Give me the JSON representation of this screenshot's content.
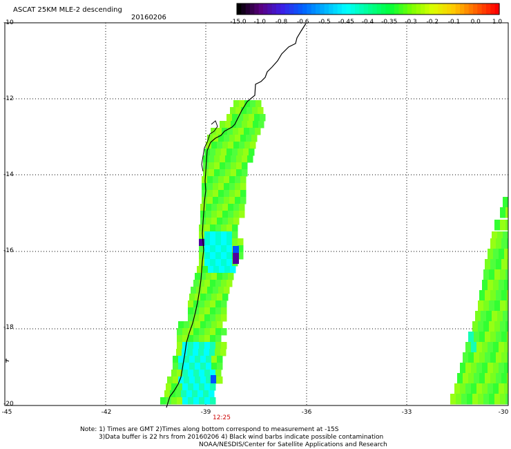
{
  "header": {
    "title": "ASCAT 25KM MLE-2 descending",
    "date": "20160206"
  },
  "colorbar": {
    "ticks": [
      "-15.0",
      "-1.0",
      "-0.8",
      "-0.6",
      "-0.5",
      "-0.45",
      "-0.4",
      "-0.35",
      "-0.3",
      "-0.2",
      "-0.1",
      "0.0",
      "1.0"
    ],
    "colors": [
      "#000000",
      "#5a0080",
      "#3c1ee6",
      "#0064ff",
      "#00b4ff",
      "#00ffff",
      "#00ff96",
      "#00ff3c",
      "#78ff00",
      "#dcff00",
      "#ffc800",
      "#ff6400",
      "#ff0000"
    ]
  },
  "axes": {
    "lat_labels": [
      "-10",
      "-12",
      "-14",
      "-16",
      "-18",
      "-20"
    ],
    "lon_labels": [
      "-45",
      "-42",
      "-39",
      "-36",
      "-33",
      "-30"
    ]
  },
  "pass_time": "12:25",
  "notes": {
    "line1": "Note: 1) Times are GMT 2)Times along bottom correspond to measurement at -15S",
    "line2": "3)Data buffer is 22 hrs from 20160206 4) Black wind barbs indicate possible contamination",
    "line3": "NOAA/NESDIS/Center for Satellite Applications and Research"
  }
}
